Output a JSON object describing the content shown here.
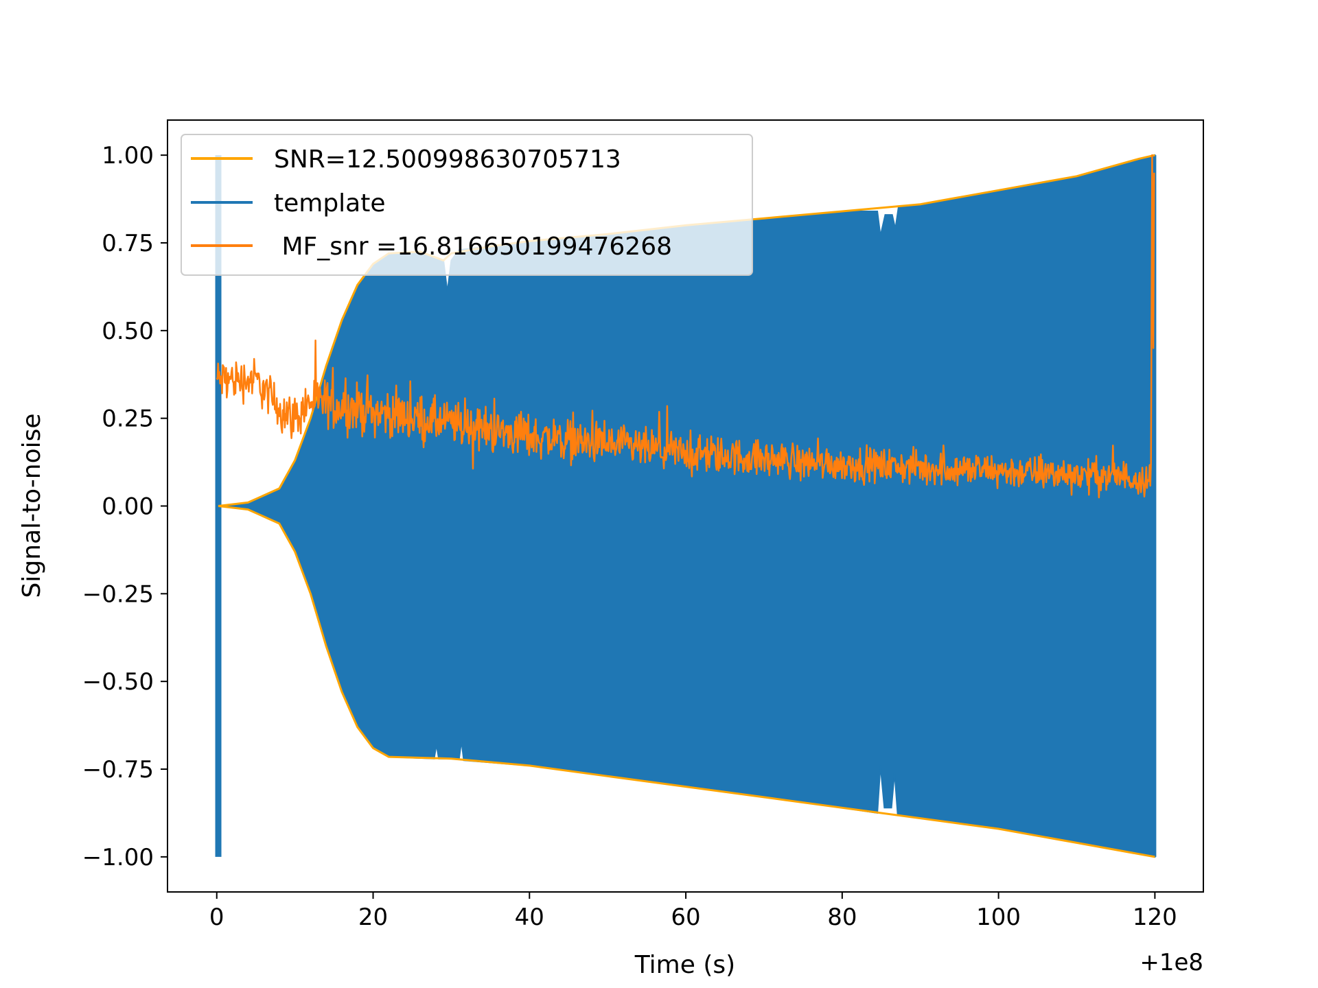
{
  "chart_data": {
    "type": "line",
    "title": "",
    "xlabel": "Time (s)",
    "ylabel": "Signal-to-noise",
    "x_offset_label": "+1e8",
    "xlim": [
      -6.3,
      126.2
    ],
    "ylim": [
      -1.1,
      1.1
    ],
    "x_ticks": [
      0,
      20,
      40,
      60,
      80,
      100,
      120
    ],
    "x_tick_labels": [
      "0",
      "20",
      "40",
      "60",
      "80",
      "100",
      "120"
    ],
    "y_ticks": [
      1.0,
      0.75,
      0.5,
      0.25,
      0.0,
      -0.25,
      -0.5,
      -0.75,
      -1.0
    ],
    "y_tick_labels": [
      "1.00",
      "0.75",
      "0.50",
      "0.25",
      "0.00",
      "−0.25",
      "−0.50",
      "−0.75",
      "−1.00"
    ],
    "grid": false,
    "legend_position": "upper-left",
    "series": [
      {
        "name": "SNR=12.500998630705713",
        "color": "#ffa500",
        "style": "envelope",
        "upper": [
          [
            0.2,
            0.0
          ],
          [
            4,
            0.01
          ],
          [
            8,
            0.05
          ],
          [
            10,
            0.13
          ],
          [
            12,
            0.25
          ],
          [
            14,
            0.4
          ],
          [
            16,
            0.53
          ],
          [
            18,
            0.63
          ],
          [
            20,
            0.69
          ],
          [
            22,
            0.72
          ],
          [
            26,
            0.725
          ],
          [
            29,
            0.7
          ],
          [
            30,
            0.72
          ],
          [
            35,
            0.74
          ],
          [
            40,
            0.755
          ],
          [
            50,
            0.775
          ],
          [
            60,
            0.8
          ],
          [
            70,
            0.82
          ],
          [
            80,
            0.84
          ],
          [
            90,
            0.86
          ],
          [
            100,
            0.9
          ],
          [
            110,
            0.94
          ],
          [
            118,
            0.99
          ],
          [
            120,
            1.0
          ]
        ],
        "lower": [
          [
            0.2,
            0.0
          ],
          [
            4,
            -0.01
          ],
          [
            8,
            -0.05
          ],
          [
            10,
            -0.13
          ],
          [
            12,
            -0.25
          ],
          [
            14,
            -0.4
          ],
          [
            16,
            -0.53
          ],
          [
            18,
            -0.63
          ],
          [
            20,
            -0.69
          ],
          [
            22,
            -0.715
          ],
          [
            30,
            -0.72
          ],
          [
            40,
            -0.74
          ],
          [
            50,
            -0.77
          ],
          [
            60,
            -0.8
          ],
          [
            70,
            -0.83
          ],
          [
            80,
            -0.86
          ],
          [
            90,
            -0.89
          ],
          [
            100,
            -0.92
          ],
          [
            110,
            -0.96
          ],
          [
            120,
            -1.0
          ]
        ]
      },
      {
        "name": "template",
        "color": "#1f77b4",
        "style": "filled-oscillation",
        "upper": [
          [
            0.2,
            0.0
          ],
          [
            4,
            0.01
          ],
          [
            8,
            0.05
          ],
          [
            10,
            0.13
          ],
          [
            12,
            0.25
          ],
          [
            14,
            0.4
          ],
          [
            16,
            0.53
          ],
          [
            18,
            0.63
          ],
          [
            20,
            0.69
          ],
          [
            22,
            0.72
          ],
          [
            26,
            0.725
          ],
          [
            29,
            0.7
          ],
          [
            29.5,
            0.61
          ],
          [
            30,
            0.7
          ],
          [
            31,
            0.73
          ],
          [
            35,
            0.74
          ],
          [
            40,
            0.755
          ],
          [
            50,
            0.775
          ],
          [
            60,
            0.8
          ],
          [
            70,
            0.82
          ],
          [
            80,
            0.84
          ],
          [
            84.5,
            0.84
          ],
          [
            84.9,
            0.77
          ],
          [
            85.5,
            0.83
          ],
          [
            86.4,
            0.83
          ],
          [
            86.8,
            0.79
          ],
          [
            87.2,
            0.85
          ],
          [
            90,
            0.86
          ],
          [
            100,
            0.9
          ],
          [
            110,
            0.94
          ],
          [
            118,
            0.99
          ],
          [
            120,
            1.0
          ]
        ],
        "lower": [
          [
            0.2,
            0.0
          ],
          [
            4,
            -0.01
          ],
          [
            8,
            -0.05
          ],
          [
            10,
            -0.13
          ],
          [
            12,
            -0.25
          ],
          [
            14,
            -0.4
          ],
          [
            16,
            -0.53
          ],
          [
            18,
            -0.63
          ],
          [
            20,
            -0.69
          ],
          [
            22,
            -0.715
          ],
          [
            27.8,
            -0.72
          ],
          [
            28.1,
            -0.68
          ],
          [
            28.4,
            -0.72
          ],
          [
            31,
            -0.72
          ],
          [
            31.3,
            -0.67
          ],
          [
            31.6,
            -0.725
          ],
          [
            40,
            -0.74
          ],
          [
            50,
            -0.77
          ],
          [
            60,
            -0.8
          ],
          [
            70,
            -0.83
          ],
          [
            80,
            -0.86
          ],
          [
            84.5,
            -0.875
          ],
          [
            84.9,
            -0.74
          ],
          [
            85.4,
            -0.86
          ],
          [
            86.3,
            -0.86
          ],
          [
            86.7,
            -0.76
          ],
          [
            87.1,
            -0.88
          ],
          [
            90,
            -0.89
          ],
          [
            100,
            -0.92
          ],
          [
            110,
            -0.96
          ],
          [
            120,
            -1.0
          ]
        ],
        "spike": {
          "x": 0.2,
          "ymax": 1.0,
          "ymin": -1.0
        }
      },
      {
        "name": " MF_snr =16.816650199476268",
        "color": "#ff7f0e",
        "style": "noisy-line",
        "mean": [
          [
            0.0,
            0.36
          ],
          [
            5,
            0.36
          ],
          [
            8,
            0.28
          ],
          [
            10,
            0.25
          ],
          [
            12,
            0.3
          ],
          [
            20,
            0.27
          ],
          [
            40,
            0.2
          ],
          [
            60,
            0.15
          ],
          [
            80,
            0.12
          ],
          [
            100,
            0.1
          ],
          [
            119.5,
            0.08
          ]
        ],
        "spread": [
          [
            0.0,
            0.09
          ],
          [
            8,
            0.09
          ],
          [
            12,
            0.1
          ],
          [
            40,
            0.09
          ],
          [
            80,
            0.07
          ],
          [
            119.5,
            0.07
          ]
        ],
        "end_spike": {
          "x": 119.8,
          "ymax": 1.0,
          "ymin": 0.45
        }
      }
    ]
  }
}
